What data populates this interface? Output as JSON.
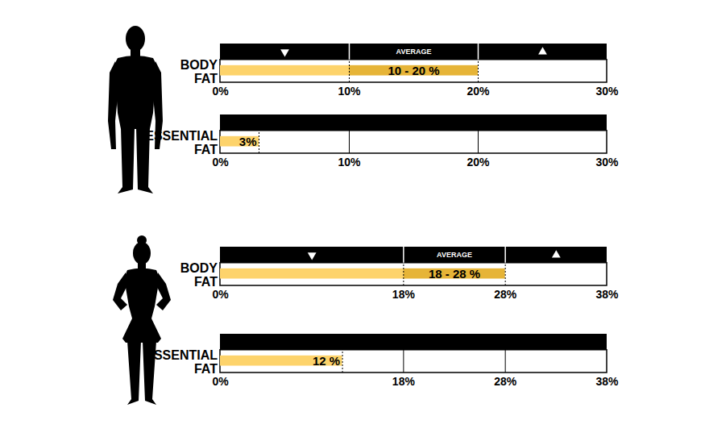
{
  "chart_data": [
    {
      "type": "bar",
      "orientation": "horizontal",
      "title": "BODY FAT",
      "average": {
        "label": "AVERAGE",
        "start": 10,
        "end": 20,
        "value_label": "10 - 20 %"
      },
      "colors": [
        "#fdd36b",
        "#e6b437"
      ],
      "xlim": [
        0,
        30
      ],
      "xticks": [
        {
          "value": 0,
          "label": "0%"
        },
        {
          "value": 10,
          "label": "10%"
        },
        {
          "value": 20,
          "label": "20%"
        },
        {
          "value": 30,
          "label": "30%"
        }
      ]
    },
    {
      "type": "bar",
      "orientation": "horizontal",
      "title": "ESSENTIAL FAT",
      "values": [
        3
      ],
      "value_labels": [
        "3%"
      ],
      "data_labels": true,
      "color": "#fdd36b",
      "xlim": [
        0,
        30
      ],
      "xticks": [
        {
          "value": 0,
          "label": "0%"
        },
        {
          "value": 10,
          "label": "10%"
        },
        {
          "value": 20,
          "label": "20%"
        },
        {
          "value": 30,
          "label": "30%"
        }
      ]
    },
    {
      "type": "bar",
      "orientation": "horizontal",
      "title": "BODY FAT",
      "average": {
        "label": "AVERAGE",
        "start": 18,
        "end": 28,
        "value_label": "18 - 28 %"
      },
      "colors": [
        "#fdd36b",
        "#e6b437"
      ],
      "xlim": [
        0,
        38
      ],
      "xticks": [
        {
          "value": 0,
          "label": "0%"
        },
        {
          "value": 18,
          "label": "18%"
        },
        {
          "value": 28,
          "label": "28%"
        },
        {
          "value": 38,
          "label": "38%"
        }
      ]
    },
    {
      "type": "bar",
      "orientation": "horizontal",
      "title": "ESSENTIAL FAT",
      "values": [
        12
      ],
      "value_labels": [
        "12 %"
      ],
      "data_labels": true,
      "color": "#fdd36b",
      "xlim": [
        0,
        38
      ],
      "xticks": [
        {
          "value": 0,
          "label": "0%"
        },
        {
          "value": 18,
          "label": "18%"
        },
        {
          "value": 28,
          "label": "28%"
        },
        {
          "value": 38,
          "label": "38%"
        }
      ]
    }
  ]
}
